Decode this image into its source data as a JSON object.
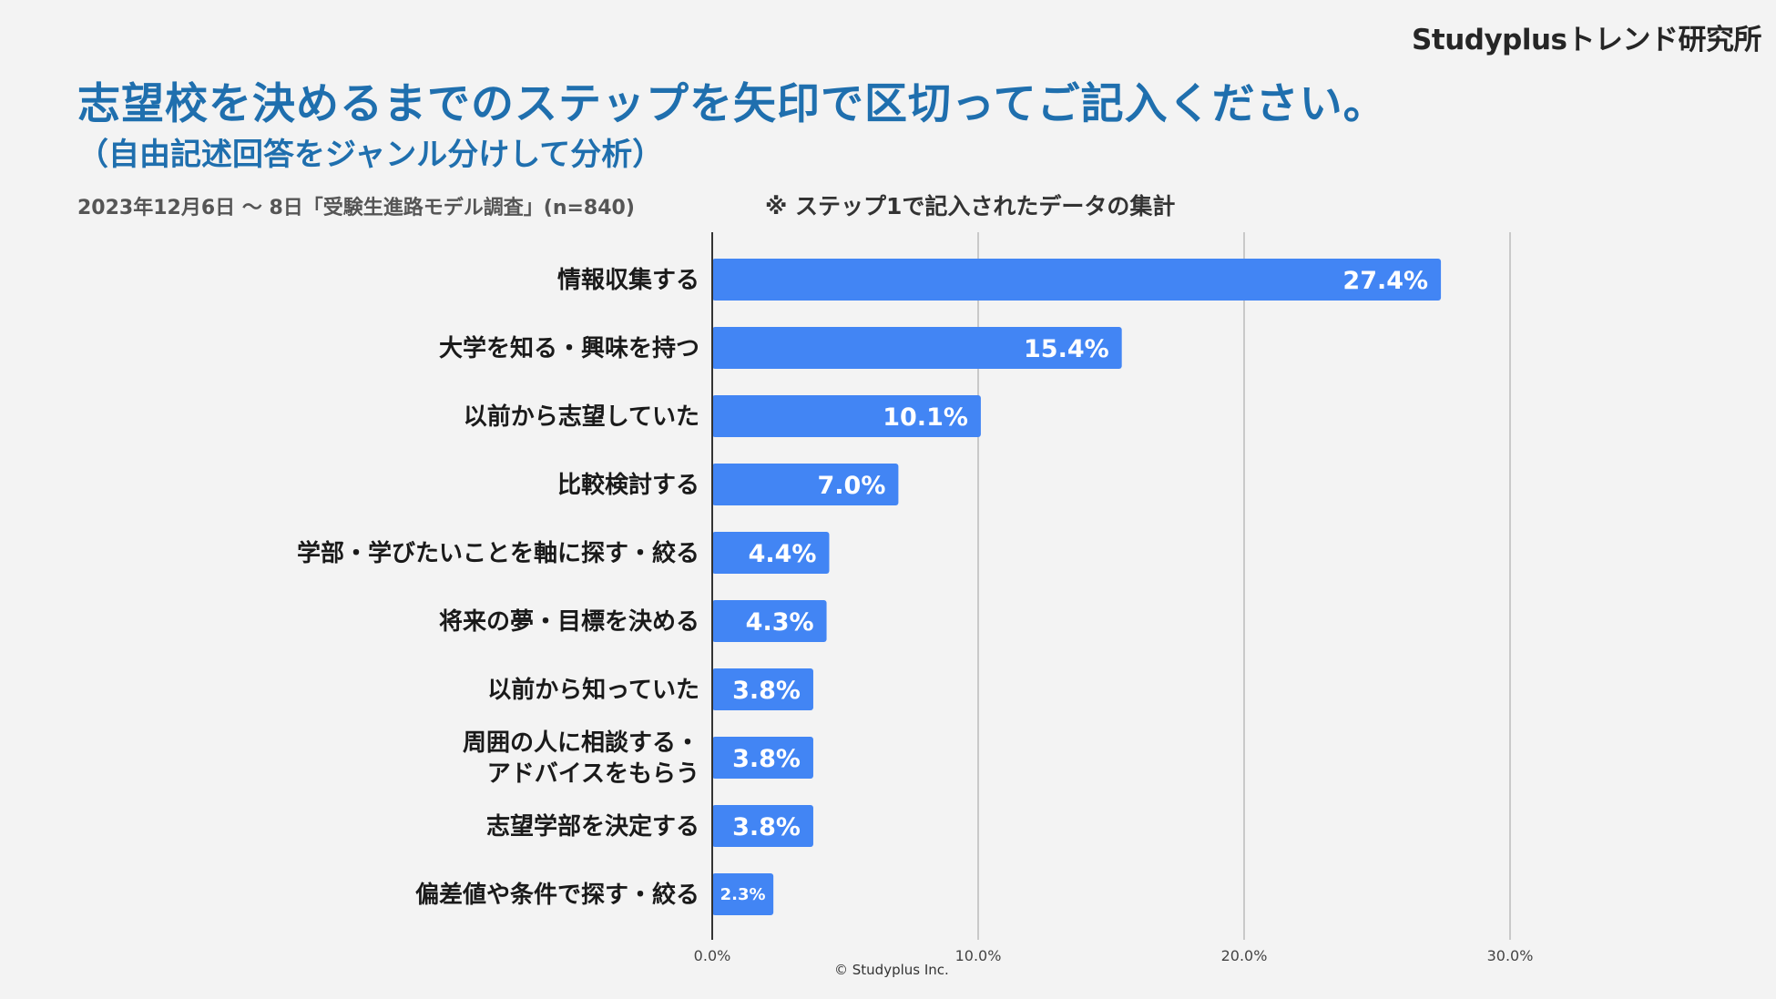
{
  "brand": "Studyplusトレンド研究所",
  "header": {
    "title": "志望校を決めるまでのステップを矢印で区切ってご記入ください。",
    "subtitle": "（自由記述回答をジャンル分けして分析）",
    "survey_info": "2023年12月6日 〜 8日「受験生進路モデル調査」(n=840)",
    "note": "※ ステップ1で記入されたデータの集計"
  },
  "footer": {
    "copyright": "© Studyplus Inc."
  },
  "colors": {
    "bar": "#4285f4",
    "title": "#1f6fae",
    "grid": "#c9c9c9"
  },
  "chart_data": {
    "type": "bar",
    "orientation": "horizontal",
    "categories": [
      "情報収集する",
      "大学を知る・興味を持つ",
      "以前から志望していた",
      "比較検討する",
      "学部・学びたいことを軸に探す・絞る",
      "将来の夢・目標を決める",
      "以前から知っていた",
      "周囲の人に相談する・\nアドバイスをもらう",
      "志望学部を決定する",
      "偏差値や条件で探す・絞る"
    ],
    "values": [
      27.4,
      15.4,
      10.1,
      7.0,
      4.4,
      4.3,
      3.8,
      3.8,
      3.8,
      2.3
    ],
    "value_labels": [
      "27.4%",
      "15.4%",
      "10.1%",
      "7.0%",
      "4.4%",
      "4.3%",
      "3.8%",
      "3.8%",
      "3.8%",
      "2.3%"
    ],
    "xlim": [
      0,
      30
    ],
    "ticks": [
      0,
      10,
      20,
      30
    ],
    "tick_labels": [
      "0.0%",
      "10.0%",
      "20.0%",
      "30.0%"
    ],
    "grid": true,
    "title": "",
    "xlabel": "",
    "ylabel": ""
  }
}
